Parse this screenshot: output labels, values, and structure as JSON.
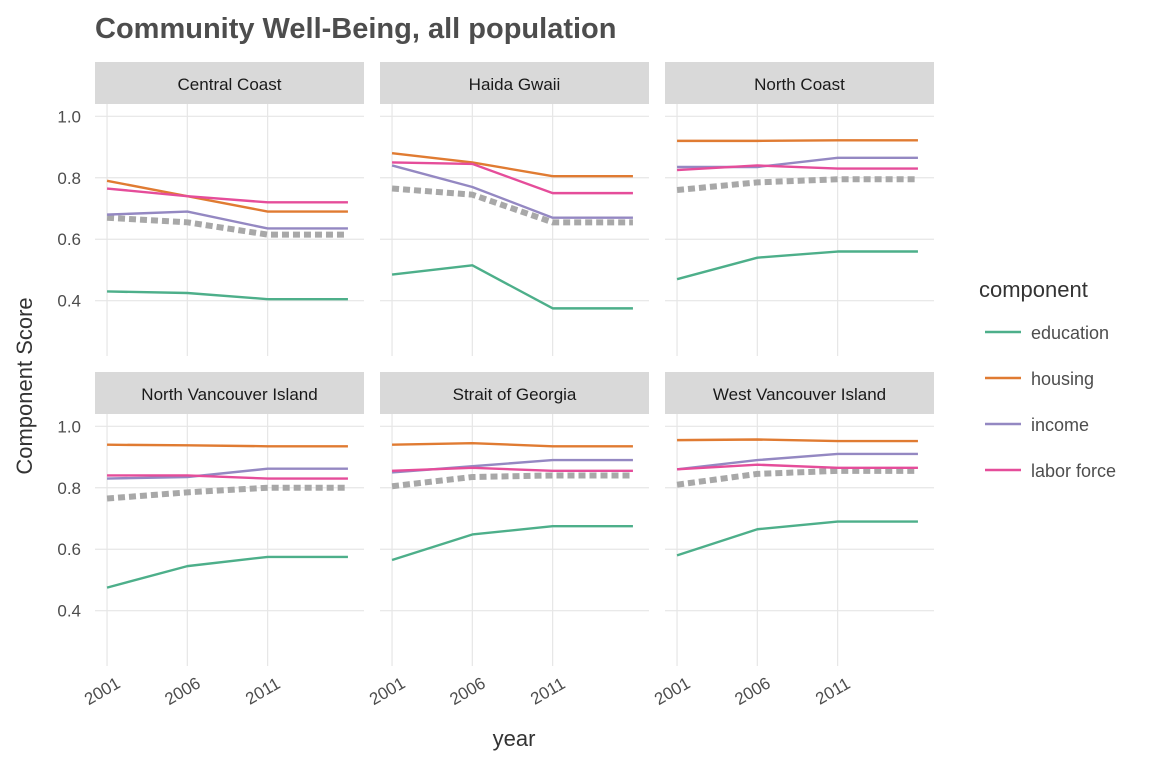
{
  "chart_data": {
    "type": "line",
    "title": "Community Well-Being, all population",
    "xlabel": "year",
    "ylabel": "Component Score",
    "x_ticks": [
      "2001",
      "2006",
      "2011"
    ],
    "x_range": [
      2000.25,
      2017
    ],
    "ylim": [
      0.22,
      1.04
    ],
    "y_ticks": [
      "0.4",
      "0.6",
      "0.8",
      "1.0"
    ],
    "legend": {
      "title": "component",
      "position": "right",
      "items": [
        {
          "key": "education",
          "label": "education",
          "color": "#4daf8a"
        },
        {
          "key": "housing",
          "label": "housing",
          "color": "#e07b32"
        },
        {
          "key": "income",
          "label": "income",
          "color": "#9488c2"
        },
        {
          "key": "labor",
          "label": "labor force",
          "color": "#e54d9a"
        }
      ]
    },
    "reference_line_color": "#a8a8a8",
    "panels": [
      {
        "name": "Central Coast",
        "x": [
          2001,
          2006,
          2011,
          2016
        ],
        "education": [
          0.43,
          0.425,
          0.405,
          0.405
        ],
        "housing": [
          0.79,
          0.74,
          0.69,
          0.69
        ],
        "income": [
          0.68,
          0.69,
          0.635,
          0.635
        ],
        "labor": [
          0.765,
          0.74,
          0.72,
          0.72
        ],
        "reference": [
          0.67,
          0.655,
          0.615,
          0.615
        ]
      },
      {
        "name": "Haida Gwaii",
        "x": [
          2001,
          2006,
          2011,
          2016
        ],
        "education": [
          0.485,
          0.515,
          0.375,
          0.375
        ],
        "housing": [
          0.88,
          0.85,
          0.805,
          0.805
        ],
        "income": [
          0.84,
          0.77,
          0.67,
          0.67
        ],
        "labor": [
          0.85,
          0.845,
          0.75,
          0.75
        ],
        "reference": [
          0.765,
          0.745,
          0.655,
          0.655
        ]
      },
      {
        "name": "North Coast",
        "x": [
          2001,
          2006,
          2011,
          2016
        ],
        "education": [
          0.47,
          0.54,
          0.56,
          0.56
        ],
        "housing": [
          0.92,
          0.92,
          0.922,
          0.922
        ],
        "income": [
          0.835,
          0.835,
          0.865,
          0.865
        ],
        "labor": [
          0.825,
          0.84,
          0.83,
          0.83
        ],
        "reference": [
          0.76,
          0.785,
          0.795,
          0.795
        ]
      },
      {
        "name": "North Vancouver Island",
        "x": [
          2001,
          2006,
          2011,
          2016
        ],
        "education": [
          0.475,
          0.545,
          0.575,
          0.575
        ],
        "housing": [
          0.94,
          0.938,
          0.935,
          0.935
        ],
        "income": [
          0.83,
          0.835,
          0.862,
          0.862
        ],
        "labor": [
          0.84,
          0.84,
          0.83,
          0.83
        ],
        "reference": [
          0.765,
          0.785,
          0.8,
          0.8
        ]
      },
      {
        "name": "Strait of Georgia",
        "x": [
          2001,
          2006,
          2011,
          2016
        ],
        "education": [
          0.565,
          0.648,
          0.675,
          0.675
        ],
        "housing": [
          0.94,
          0.945,
          0.935,
          0.935
        ],
        "income": [
          0.85,
          0.87,
          0.89,
          0.89
        ],
        "labor": [
          0.855,
          0.865,
          0.855,
          0.855
        ],
        "reference": [
          0.805,
          0.835,
          0.84,
          0.84
        ]
      },
      {
        "name": "West Vancouver Island",
        "x": [
          2001,
          2006,
          2011,
          2016
        ],
        "education": [
          0.58,
          0.665,
          0.69,
          0.69
        ],
        "housing": [
          0.955,
          0.957,
          0.952,
          0.952
        ],
        "income": [
          0.86,
          0.89,
          0.91,
          0.91
        ],
        "labor": [
          0.86,
          0.875,
          0.865,
          0.865
        ],
        "reference": [
          0.81,
          0.845,
          0.855,
          0.855
        ]
      }
    ]
  }
}
